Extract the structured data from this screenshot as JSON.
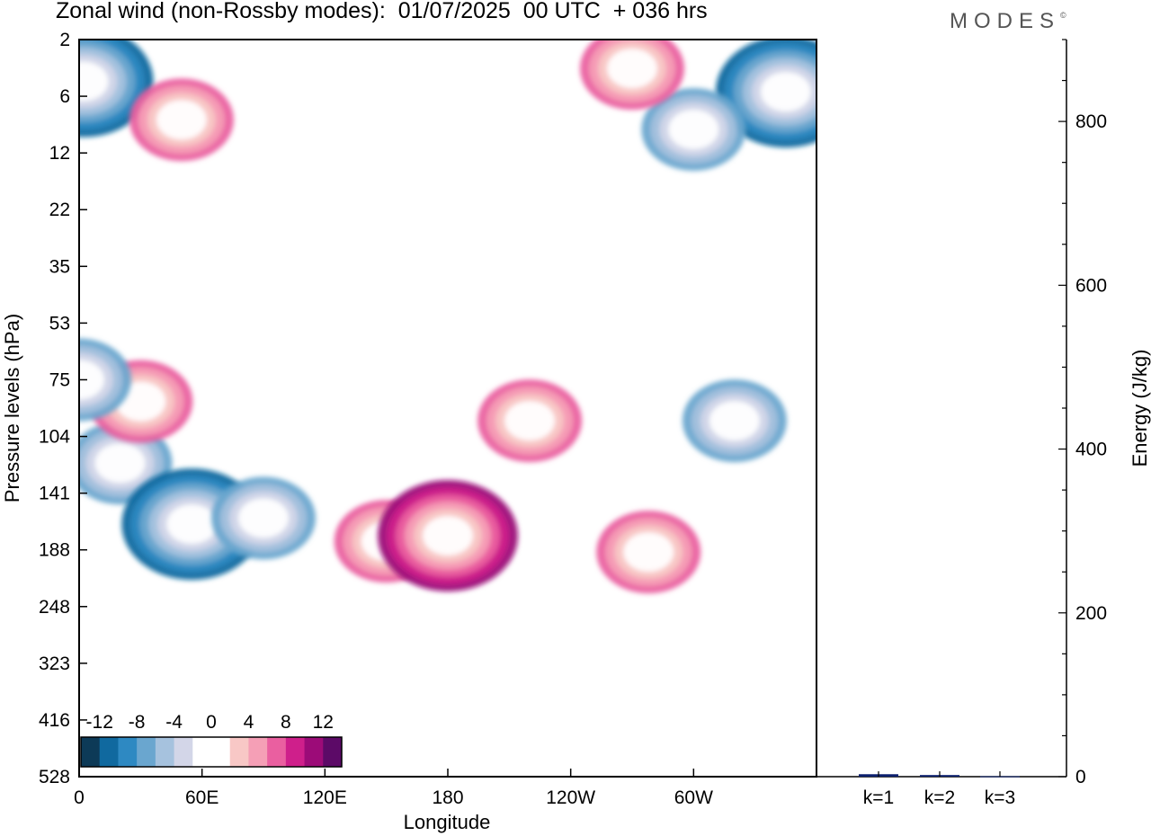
{
  "title": "Zonal wind (non-Rossby modes):  01/07/2025  00 UTC  + 036 hrs",
  "logo": "MODES",
  "chart_data": [
    {
      "type": "heatmap",
      "title": "Zonal wind (non-Rossby modes):  01/07/2025  00 UTC  + 036 hrs",
      "xlabel": "Longitude",
      "ylabel": "Pressure levels (hPa)",
      "x_ticks": [
        "0",
        "60E",
        "120E",
        "180",
        "120W",
        "60W"
      ],
      "x_tick_lon": [
        0,
        60,
        120,
        180,
        240,
        300
      ],
      "xlim": [
        0,
        360
      ],
      "y_ticks": [
        "2",
        "6",
        "12",
        "22",
        "35",
        "53",
        "75",
        "104",
        "141",
        "188",
        "248",
        "323",
        "416",
        "528"
      ],
      "colorbar": {
        "labels": [
          "-12",
          "-8",
          "-4",
          "0",
          "4",
          "8",
          "12"
        ],
        "colors": [
          "#0d3a57",
          "#10699f",
          "#2e89c2",
          "#6aa6cf",
          "#a6c2de",
          "#d3d6e8",
          "#ffffff",
          "#ffffff",
          "#f8c8c6",
          "#f59fb6",
          "#ea5fa0",
          "#cf1f8b",
          "#9c0b78",
          "#5c0a67"
        ]
      },
      "features": [
        {
          "lon": 2,
          "level": 4.5,
          "value": -12
        },
        {
          "lon": 345,
          "level": 5.5,
          "value": -12
        },
        {
          "lon": 50,
          "level": 8,
          "value": 8
        },
        {
          "lon": 300,
          "level": 9,
          "value": -8
        },
        {
          "lon": 270,
          "level": 3.5,
          "value": 8
        },
        {
          "lon": 20,
          "level": 120,
          "value": -8
        },
        {
          "lon": 55,
          "level": 165,
          "value": -12
        },
        {
          "lon": 90,
          "level": 160,
          "value": -8
        },
        {
          "lon": 150,
          "level": 180,
          "value": 8
        },
        {
          "lon": 180,
          "level": 175,
          "value": 12
        },
        {
          "lon": 220,
          "level": 95,
          "value": 8
        },
        {
          "lon": 320,
          "level": 95,
          "value": -8
        },
        {
          "lon": 278,
          "level": 190,
          "value": 8
        },
        {
          "lon": 30,
          "level": 85,
          "value": 8
        },
        {
          "lon": 0,
          "level": 75,
          "value": -8
        }
      ]
    },
    {
      "type": "bar",
      "categories": [
        "k=1",
        "k=2",
        "k=3"
      ],
      "values": [
        3,
        2,
        0.5
      ],
      "ylabel": "Energy (J/kg)",
      "y_ticks": [
        "0",
        "200",
        "400",
        "600",
        "800"
      ],
      "ylim": [
        0,
        900
      ],
      "bar_color": "#0b1f6e"
    }
  ]
}
